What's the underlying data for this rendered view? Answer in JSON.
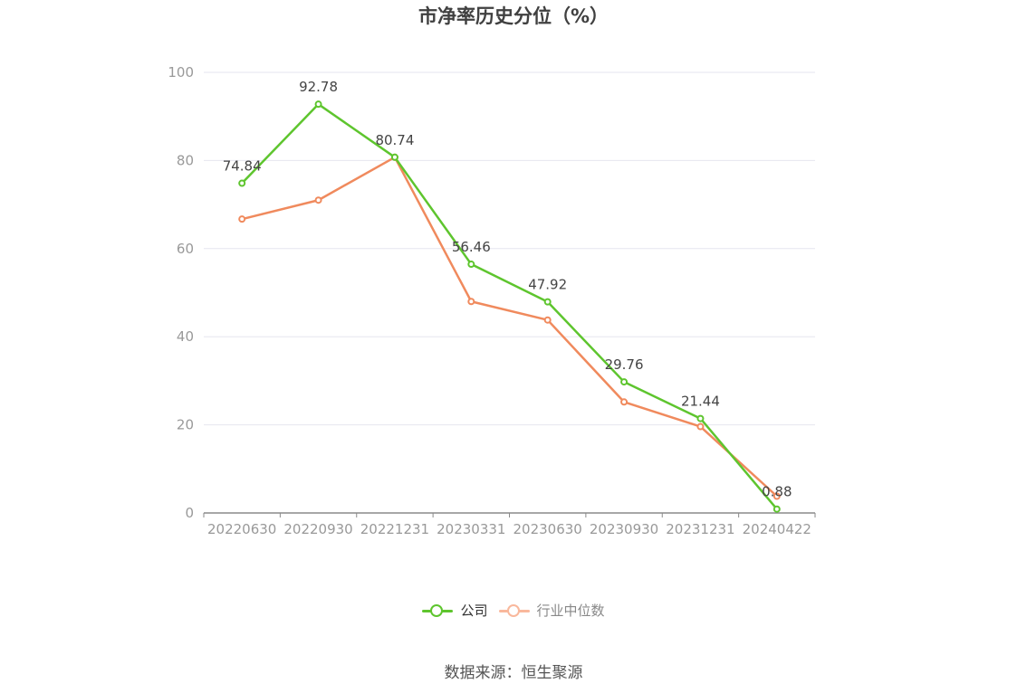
{
  "chart_data": {
    "type": "line",
    "title": "市净率历史分位（%）",
    "categories": [
      "20220630",
      "20220930",
      "20221231",
      "20230331",
      "20230630",
      "20230930",
      "20231231",
      "20240422"
    ],
    "ylim": [
      0,
      100
    ],
    "yticks": [
      0,
      20,
      40,
      60,
      80,
      100
    ],
    "grid": true,
    "legend_position": "bottom",
    "series": [
      {
        "name": "公司",
        "color": "#5ec52e",
        "values": [
          74.84,
          92.78,
          80.74,
          56.46,
          47.92,
          29.76,
          21.44,
          0.88
        ],
        "labels": [
          "74.84",
          "92.78",
          "80.74",
          "56.46",
          "47.92",
          "29.76",
          "21.44",
          "0.88"
        ]
      },
      {
        "name": "行业中位数",
        "color": "#f08a5d",
        "values": [
          66.7,
          71.0,
          80.74,
          48.0,
          43.8,
          25.2,
          19.6,
          3.8
        ]
      }
    ]
  },
  "legend": {
    "company_label": "公司",
    "industry_label": "行业中位数",
    "industry_text_color": "#888888",
    "industry_swatch_color": "#f9b89c"
  },
  "source": "数据来源：恒生聚源"
}
